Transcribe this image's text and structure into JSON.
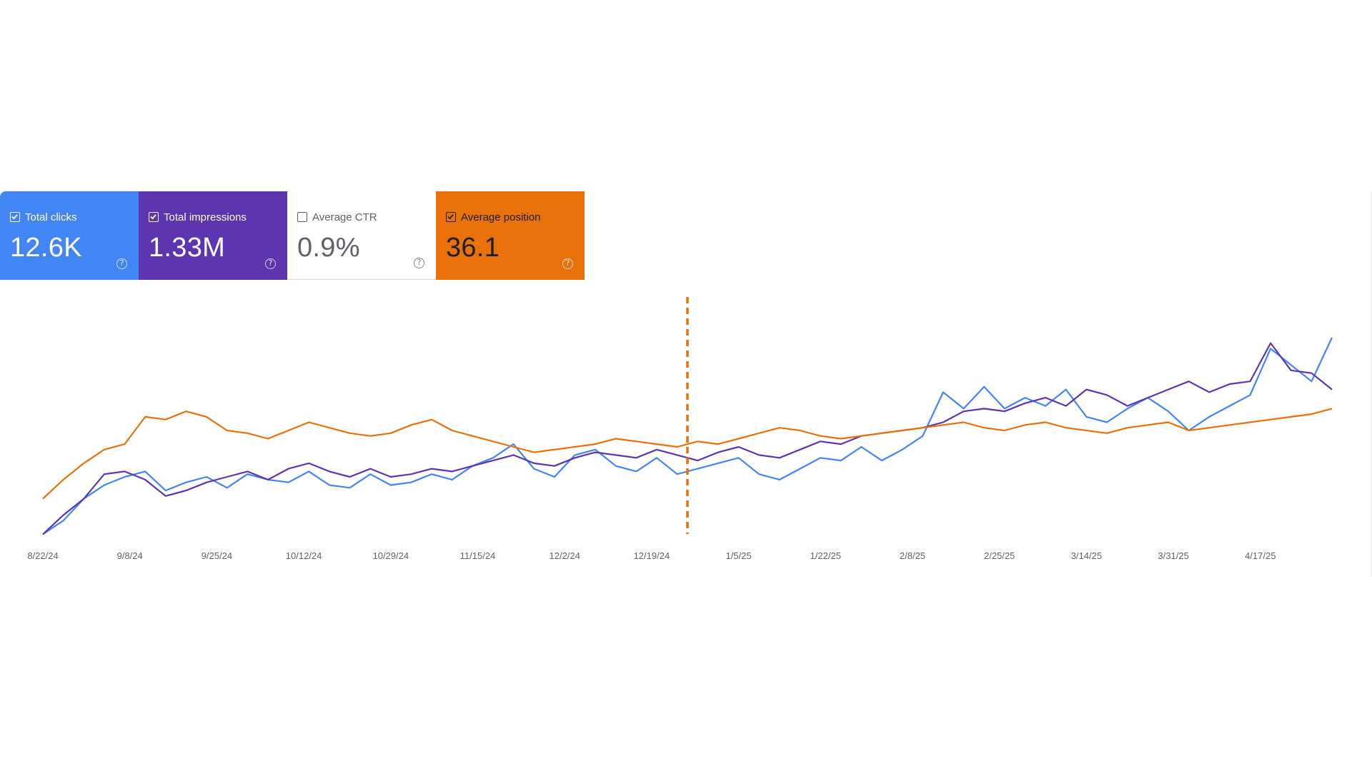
{
  "cards": [
    {
      "label": "Total clicks",
      "value": "12.6K",
      "checked": true,
      "color": "#4285f4"
    },
    {
      "label": "Total impressions",
      "value": "1.33M",
      "checked": true,
      "color": "#5e35b1"
    },
    {
      "label": "Average CTR",
      "value": "0.9%",
      "checked": false,
      "color": "#ffffff"
    },
    {
      "label": "Average position",
      "value": "36.1",
      "checked": true,
      "color": "#e8710a"
    }
  ],
  "help_glyph": "?",
  "chart_data": {
    "type": "line",
    "x_start": "2024-08-22",
    "x_end": "2025-05-01",
    "x_tick_labels": [
      "8/22/24",
      "9/8/24",
      "9/25/24",
      "10/12/24",
      "10/29/24",
      "11/15/24",
      "12/2/24",
      "12/19/24",
      "1/5/25",
      "1/22/25",
      "2/8/25",
      "2/25/25",
      "3/14/25",
      "3/31/25",
      "4/17/25"
    ],
    "x_tick_dates": [
      "2024-08-22",
      "2024-09-08",
      "2024-09-25",
      "2024-10-12",
      "2024-10-29",
      "2024-11-15",
      "2024-12-02",
      "2024-12-19",
      "2025-01-05",
      "2025-01-22",
      "2025-02-08",
      "2025-02-25",
      "2025-03-14",
      "2025-03-31",
      "2025-04-17"
    ],
    "grid": false,
    "annotation": {
      "type": "vertical-dashed-line",
      "date": "2024-12-26",
      "color": "#e8710a"
    },
    "series": [
      {
        "color": "#4285f4",
        "points": [
          [
            "2024-08-22",
            2
          ],
          [
            "2024-08-26",
            7
          ],
          [
            "2024-08-30",
            15
          ],
          [
            "2024-09-03",
            20
          ],
          [
            "2024-09-07",
            23
          ],
          [
            "2024-09-11",
            25
          ],
          [
            "2024-09-15",
            18
          ],
          [
            "2024-09-19",
            21
          ],
          [
            "2024-09-23",
            23
          ],
          [
            "2024-09-27",
            19
          ],
          [
            "2024-10-01",
            24
          ],
          [
            "2024-10-05",
            22
          ],
          [
            "2024-10-09",
            21
          ],
          [
            "2024-10-13",
            25
          ],
          [
            "2024-10-17",
            20
          ],
          [
            "2024-10-21",
            19
          ],
          [
            "2024-10-25",
            24
          ],
          [
            "2024-10-29",
            20
          ],
          [
            "2024-11-02",
            21
          ],
          [
            "2024-11-06",
            24
          ],
          [
            "2024-11-10",
            22
          ],
          [
            "2024-11-14",
            27
          ],
          [
            "2024-11-18",
            30
          ],
          [
            "2024-11-22",
            35
          ],
          [
            "2024-11-26",
            26
          ],
          [
            "2024-11-30",
            23
          ],
          [
            "2024-12-04",
            31
          ],
          [
            "2024-12-08",
            33
          ],
          [
            "2024-12-12",
            27
          ],
          [
            "2024-12-16",
            25
          ],
          [
            "2024-12-20",
            30
          ],
          [
            "2024-12-24",
            24
          ],
          [
            "2024-12-28",
            26
          ],
          [
            "2025-01-01",
            28
          ],
          [
            "2025-01-05",
            30
          ],
          [
            "2025-01-09",
            24
          ],
          [
            "2025-01-13",
            22
          ],
          [
            "2025-01-17",
            26
          ],
          [
            "2025-01-21",
            30
          ],
          [
            "2025-01-25",
            29
          ],
          [
            "2025-01-29",
            34
          ],
          [
            "2025-02-02",
            29
          ],
          [
            "2025-02-06",
            33
          ],
          [
            "2025-02-10",
            38
          ],
          [
            "2025-02-14",
            54
          ],
          [
            "2025-02-18",
            48
          ],
          [
            "2025-02-22",
            56
          ],
          [
            "2025-02-26",
            48
          ],
          [
            "2025-03-02",
            52
          ],
          [
            "2025-03-06",
            49
          ],
          [
            "2025-03-10",
            55
          ],
          [
            "2025-03-14",
            45
          ],
          [
            "2025-03-18",
            43
          ],
          [
            "2025-03-22",
            48
          ],
          [
            "2025-03-26",
            52
          ],
          [
            "2025-03-30",
            47
          ],
          [
            "2025-04-03",
            40
          ],
          [
            "2025-04-07",
            45
          ],
          [
            "2025-04-11",
            49
          ],
          [
            "2025-04-15",
            53
          ],
          [
            "2025-04-19",
            70
          ],
          [
            "2025-04-23",
            64
          ],
          [
            "2025-04-27",
            58
          ],
          [
            "2025-05-01",
            74
          ]
        ]
      },
      {
        "color": "#5e35b1",
        "points": [
          [
            "2024-08-22",
            2
          ],
          [
            "2024-08-26",
            9
          ],
          [
            "2024-08-30",
            15
          ],
          [
            "2024-09-03",
            24
          ],
          [
            "2024-09-07",
            25
          ],
          [
            "2024-09-11",
            22
          ],
          [
            "2024-09-15",
            16
          ],
          [
            "2024-09-19",
            18
          ],
          [
            "2024-09-23",
            21
          ],
          [
            "2024-09-27",
            23
          ],
          [
            "2024-10-01",
            25
          ],
          [
            "2024-10-05",
            22
          ],
          [
            "2024-10-09",
            26
          ],
          [
            "2024-10-13",
            28
          ],
          [
            "2024-10-17",
            25
          ],
          [
            "2024-10-21",
            23
          ],
          [
            "2024-10-25",
            26
          ],
          [
            "2024-10-29",
            23
          ],
          [
            "2024-11-02",
            24
          ],
          [
            "2024-11-06",
            26
          ],
          [
            "2024-11-10",
            25
          ],
          [
            "2024-11-14",
            27
          ],
          [
            "2024-11-18",
            29
          ],
          [
            "2024-11-22",
            31
          ],
          [
            "2024-11-26",
            28
          ],
          [
            "2024-11-30",
            27
          ],
          [
            "2024-12-04",
            30
          ],
          [
            "2024-12-08",
            32
          ],
          [
            "2024-12-12",
            31
          ],
          [
            "2024-12-16",
            30
          ],
          [
            "2024-12-20",
            33
          ],
          [
            "2024-12-24",
            31
          ],
          [
            "2024-12-28",
            29
          ],
          [
            "2025-01-01",
            32
          ],
          [
            "2025-01-05",
            34
          ],
          [
            "2025-01-09",
            31
          ],
          [
            "2025-01-13",
            30
          ],
          [
            "2025-01-17",
            33
          ],
          [
            "2025-01-21",
            36
          ],
          [
            "2025-01-25",
            35
          ],
          [
            "2025-01-29",
            38
          ],
          [
            "2025-02-02",
            39
          ],
          [
            "2025-02-06",
            40
          ],
          [
            "2025-02-10",
            41
          ],
          [
            "2025-02-14",
            43
          ],
          [
            "2025-02-18",
            47
          ],
          [
            "2025-02-22",
            48
          ],
          [
            "2025-02-26",
            47
          ],
          [
            "2025-03-02",
            50
          ],
          [
            "2025-03-06",
            52
          ],
          [
            "2025-03-10",
            49
          ],
          [
            "2025-03-14",
            55
          ],
          [
            "2025-03-18",
            53
          ],
          [
            "2025-03-22",
            49
          ],
          [
            "2025-03-26",
            52
          ],
          [
            "2025-03-30",
            55
          ],
          [
            "2025-04-03",
            58
          ],
          [
            "2025-04-07",
            54
          ],
          [
            "2025-04-11",
            57
          ],
          [
            "2025-04-15",
            58
          ],
          [
            "2025-04-19",
            72
          ],
          [
            "2025-04-23",
            62
          ],
          [
            "2025-04-27",
            61
          ],
          [
            "2025-05-01",
            55
          ]
        ]
      },
      {
        "color": "#e8710a",
        "points": [
          [
            "2024-08-22",
            15
          ],
          [
            "2024-08-26",
            22
          ],
          [
            "2024-08-30",
            28
          ],
          [
            "2024-09-03",
            33
          ],
          [
            "2024-09-07",
            35
          ],
          [
            "2024-09-11",
            45
          ],
          [
            "2024-09-15",
            44
          ],
          [
            "2024-09-19",
            47
          ],
          [
            "2024-09-23",
            45
          ],
          [
            "2024-09-27",
            40
          ],
          [
            "2024-10-01",
            39
          ],
          [
            "2024-10-05",
            37
          ],
          [
            "2024-10-09",
            40
          ],
          [
            "2024-10-13",
            43
          ],
          [
            "2024-10-17",
            41
          ],
          [
            "2024-10-21",
            39
          ],
          [
            "2024-10-25",
            38
          ],
          [
            "2024-10-29",
            39
          ],
          [
            "2024-11-02",
            42
          ],
          [
            "2024-11-06",
            44
          ],
          [
            "2024-11-10",
            40
          ],
          [
            "2024-11-14",
            38
          ],
          [
            "2024-11-18",
            36
          ],
          [
            "2024-11-22",
            34
          ],
          [
            "2024-11-26",
            32
          ],
          [
            "2024-11-30",
            33
          ],
          [
            "2024-12-04",
            34
          ],
          [
            "2024-12-08",
            35
          ],
          [
            "2024-12-12",
            37
          ],
          [
            "2024-12-16",
            36
          ],
          [
            "2024-12-20",
            35
          ],
          [
            "2024-12-24",
            34
          ],
          [
            "2024-12-28",
            36
          ],
          [
            "2025-01-01",
            35
          ],
          [
            "2025-01-05",
            37
          ],
          [
            "2025-01-09",
            39
          ],
          [
            "2025-01-13",
            41
          ],
          [
            "2025-01-17",
            40
          ],
          [
            "2025-01-21",
            38
          ],
          [
            "2025-01-25",
            37
          ],
          [
            "2025-01-29",
            38
          ],
          [
            "2025-02-02",
            39
          ],
          [
            "2025-02-06",
            40
          ],
          [
            "2025-02-10",
            41
          ],
          [
            "2025-02-14",
            42
          ],
          [
            "2025-02-18",
            43
          ],
          [
            "2025-02-22",
            41
          ],
          [
            "2025-02-26",
            40
          ],
          [
            "2025-03-02",
            42
          ],
          [
            "2025-03-06",
            43
          ],
          [
            "2025-03-10",
            41
          ],
          [
            "2025-03-14",
            40
          ],
          [
            "2025-03-18",
            39
          ],
          [
            "2025-03-22",
            41
          ],
          [
            "2025-03-26",
            42
          ],
          [
            "2025-03-30",
            43
          ],
          [
            "2025-04-03",
            40
          ],
          [
            "2025-04-07",
            41
          ],
          [
            "2025-04-11",
            42
          ],
          [
            "2025-04-15",
            43
          ],
          [
            "2025-04-19",
            44
          ],
          [
            "2025-04-23",
            45
          ],
          [
            "2025-04-27",
            46
          ],
          [
            "2025-05-01",
            48
          ]
        ]
      }
    ]
  }
}
